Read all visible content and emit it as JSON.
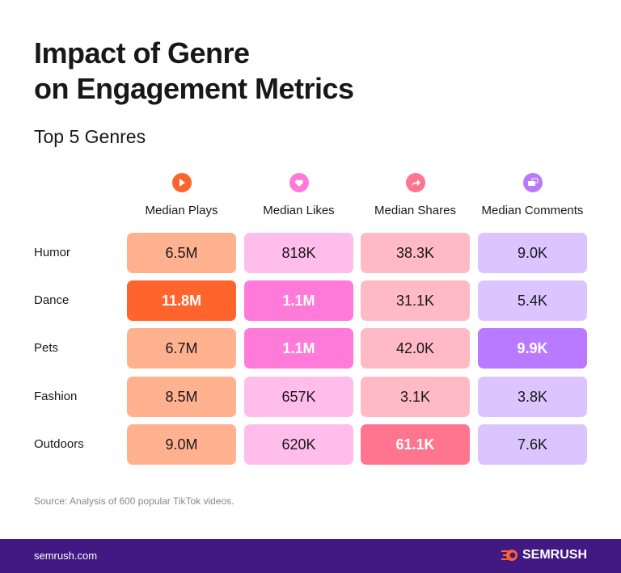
{
  "title_line1": "Impact of Genre",
  "title_line2": "on Engagement Metrics",
  "subtitle": "Top 5 Genres",
  "chart_data": {
    "type": "table",
    "columns": [
      {
        "label": "Median Plays",
        "icon": "play-icon",
        "color": "#FF642D",
        "light": "#FFB190"
      },
      {
        "label": "Median Likes",
        "icon": "heart-icon",
        "color": "#FF7AD9",
        "light": "#FFBDEB"
      },
      {
        "label": "Median Shares",
        "icon": "share-icon",
        "color": "#FF758F",
        "light": "#FFBAC6"
      },
      {
        "label": "Median Comments",
        "icon": "comments-icon",
        "color": "#B97AFF",
        "light": "#DCC5FF"
      }
    ],
    "rows": [
      {
        "label": "Humor",
        "values": [
          "6.5M",
          "818K",
          "38.3K",
          "9.0K"
        ],
        "highlight": [
          false,
          false,
          false,
          false
        ]
      },
      {
        "label": "Dance",
        "values": [
          "11.8M",
          "1.1M",
          "31.1K",
          "5.4K"
        ],
        "highlight": [
          true,
          true,
          false,
          false
        ]
      },
      {
        "label": "Pets",
        "values": [
          "6.7M",
          "1.1M",
          "42.0K",
          "9.9K"
        ],
        "highlight": [
          false,
          true,
          false,
          true
        ]
      },
      {
        "label": "Fashion",
        "values": [
          "8.5M",
          "657K",
          "3.1K",
          "3.8K"
        ],
        "highlight": [
          false,
          false,
          false,
          false
        ]
      },
      {
        "label": "Outdoors",
        "values": [
          "9.0M",
          "620K",
          "61.1K",
          "7.6K"
        ],
        "highlight": [
          false,
          false,
          true,
          false
        ]
      }
    ]
  },
  "source": "Source: Analysis of 600 popular TikTok videos.",
  "footer": {
    "site": "semrush.com",
    "logo": "SEMRUSH",
    "brand_color": "#421983"
  }
}
